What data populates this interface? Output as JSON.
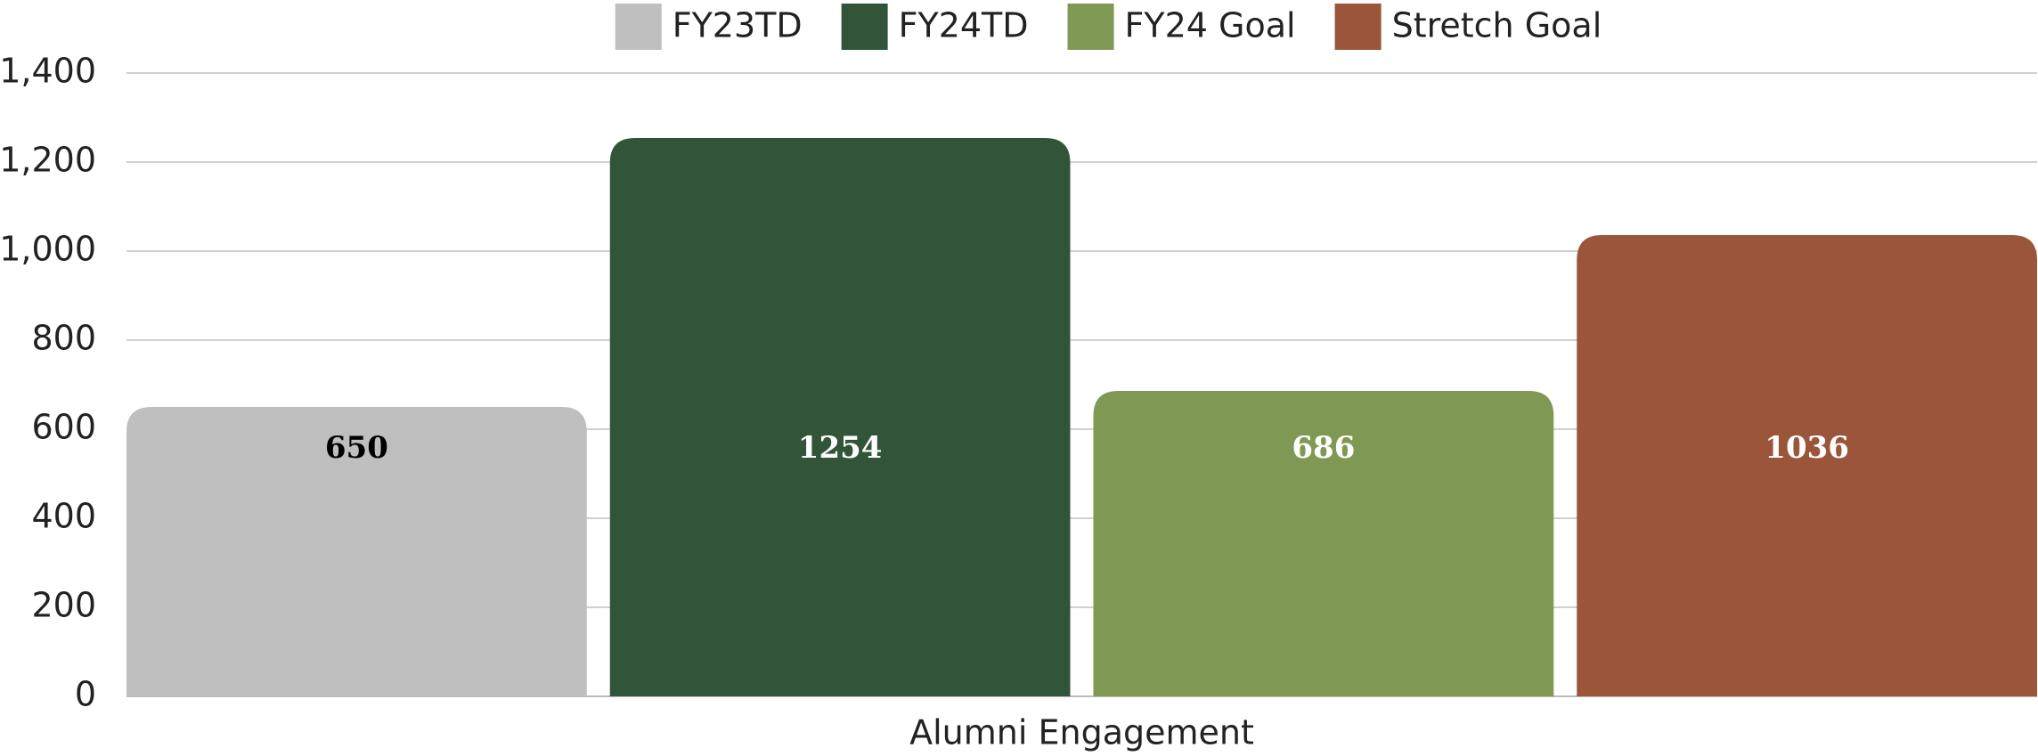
{
  "chart_data": {
    "type": "bar",
    "categories": [
      "Alumni Engagement"
    ],
    "series": [
      {
        "name": "FY23TD",
        "color": "#bfbfbf",
        "label_color": "#000000",
        "values": [
          650
        ]
      },
      {
        "name": "FY24TD",
        "color": "#32553a",
        "label_color": "#ffffff",
        "values": [
          1254
        ]
      },
      {
        "name": "FY24 Goal",
        "color": "#7f9955",
        "label_color": "#ffffff",
        "values": [
          686
        ]
      },
      {
        "name": "Stretch Goal",
        "color": "#9a553a",
        "label_color": "#ffffff",
        "values": [
          1036
        ]
      }
    ],
    "ylim": [
      0,
      1400
    ],
    "yticks": [
      0,
      200,
      400,
      600,
      800,
      {
        "value": 1000,
        "label": "1,000"
      },
      {
        "value": 1200,
        "label": "1,200"
      },
      {
        "value": 1400,
        "label": "1,400"
      }
    ],
    "grid": true,
    "legend": "top"
  }
}
